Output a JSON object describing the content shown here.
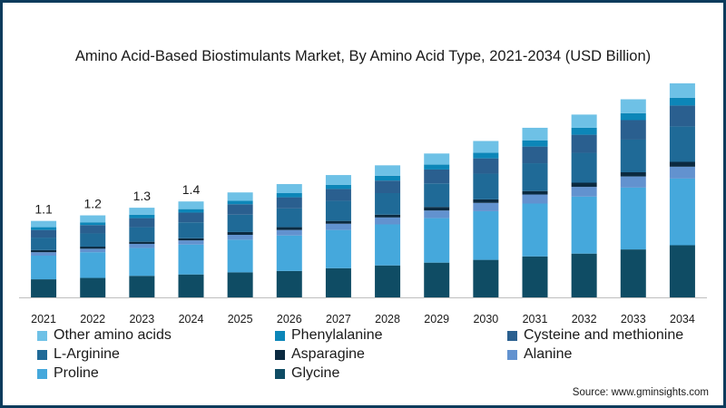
{
  "chart_data": {
    "type": "bar",
    "stacked": true,
    "title": "Amino Acid-Based Biostimulants Market, By Amino Acid Type, 2021-2034 (USD Billion)",
    "xlabel": "",
    "ylabel": "",
    "ylim": [
      0,
      3.0
    ],
    "grid": false,
    "legend_position": "bottom",
    "categories": [
      "2021",
      "2022",
      "2023",
      "2024",
      "2025",
      "2026",
      "2027",
      "2028",
      "2029",
      "2030",
      "2031",
      "2032",
      "2033",
      "2034"
    ],
    "totals_labels": [
      "1.1",
      "1.2",
      "1.3",
      "1.4",
      "",
      "",
      "",
      "",
      "",
      "",
      "",
      "",
      "",
      ""
    ],
    "series": [
      {
        "name": "Glycine",
        "color": "#0f4c64",
        "values": [
          0.26,
          0.28,
          0.31,
          0.33,
          0.36,
          0.38,
          0.42,
          0.46,
          0.5,
          0.54,
          0.59,
          0.63,
          0.69,
          0.75
        ]
      },
      {
        "name": "Proline",
        "color": "#45a8dc",
        "values": [
          0.34,
          0.37,
          0.4,
          0.43,
          0.47,
          0.51,
          0.55,
          0.59,
          0.64,
          0.7,
          0.76,
          0.82,
          0.89,
          0.96
        ]
      },
      {
        "name": "Alanine",
        "color": "#6292cf",
        "values": [
          0.05,
          0.05,
          0.06,
          0.06,
          0.07,
          0.08,
          0.09,
          0.1,
          0.11,
          0.12,
          0.13,
          0.14,
          0.16,
          0.17
        ]
      },
      {
        "name": "Asparagine",
        "color": "#0b2a40",
        "values": [
          0.03,
          0.03,
          0.03,
          0.03,
          0.04,
          0.04,
          0.04,
          0.04,
          0.05,
          0.05,
          0.05,
          0.06,
          0.06,
          0.07
        ]
      },
      {
        "name": "L-Arginine",
        "color": "#1f6a97",
        "values": [
          0.18,
          0.19,
          0.21,
          0.23,
          0.25,
          0.27,
          0.29,
          0.31,
          0.34,
          0.37,
          0.4,
          0.43,
          0.47,
          0.51
        ]
      },
      {
        "name": "Cysteine and methionine",
        "color": "#2a5f8f",
        "values": [
          0.11,
          0.12,
          0.13,
          0.14,
          0.15,
          0.16,
          0.17,
          0.18,
          0.2,
          0.22,
          0.24,
          0.26,
          0.28,
          0.3
        ]
      },
      {
        "name": "Phenylalanine",
        "color": "#0c86b8",
        "values": [
          0.04,
          0.04,
          0.05,
          0.05,
          0.05,
          0.06,
          0.06,
          0.07,
          0.07,
          0.08,
          0.09,
          0.1,
          0.1,
          0.11
        ]
      },
      {
        "name": "Other amino acids",
        "color": "#6ec1e6",
        "values": [
          0.09,
          0.1,
          0.1,
          0.11,
          0.12,
          0.13,
          0.14,
          0.15,
          0.16,
          0.17,
          0.18,
          0.19,
          0.2,
          0.21
        ]
      }
    ],
    "legend_order": [
      "Other amino acids",
      "Phenylalanine",
      "Cysteine and methionine",
      "L-Arginine",
      "Asparagine",
      "Alanine",
      "Proline",
      "Glycine"
    ]
  },
  "source": "Source: www.gminsights.com"
}
